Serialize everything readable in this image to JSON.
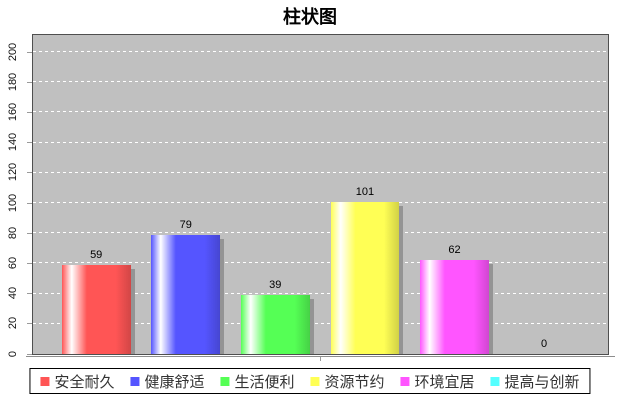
{
  "title": "柱状图",
  "chart_data": {
    "type": "bar",
    "title": "柱状图",
    "categories": [
      "安全耐久",
      "健康舒适",
      "生活便利",
      "资源节约",
      "环境宜居",
      "提高与创新"
    ],
    "values": [
      59,
      79,
      39,
      101,
      62,
      0
    ],
    "series_colors": [
      "#ff5555",
      "#5555ff",
      "#55ff55",
      "#ffff55",
      "#ff55ff",
      "#55ffff"
    ],
    "xlabel": "",
    "ylabel": "",
    "ylim": [
      0,
      200
    ],
    "yticks": [
      0,
      20,
      40,
      60,
      80,
      100,
      120,
      140,
      160,
      180,
      200
    ],
    "grid": "horizontal white dashed",
    "plot_background": "#c0c0c0",
    "bar_shadow_color": "#949494",
    "legend_position": "bottom",
    "value_labels_shown": true
  }
}
